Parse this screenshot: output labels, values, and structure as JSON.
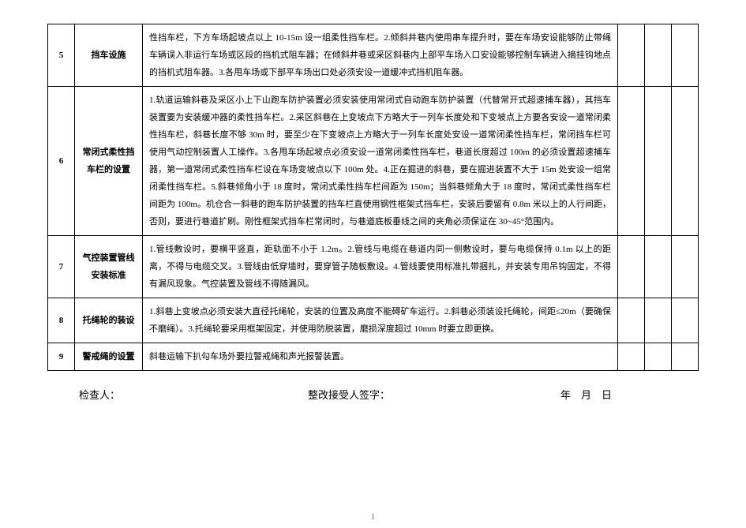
{
  "table": {
    "rows": [
      {
        "num": "5",
        "title": "挡车设施",
        "desc": "性挡车栏，下方车场起坡点以上 10-15m 设一组柔性挡车栏。2.倾斜井巷内使用串车提升时，要在车场安设能够防止带绳车辆误入非运行车场或区段的挡机式阻车器；在倾斜井巷或采区斜巷内上部平车场入口安设能够控制车辆进入摘挂钩地点的挡机式阻车器。3.各甩车场或下部平车场出口处必须安设一道缓冲式挡机阻车器。"
      },
      {
        "num": "6",
        "title": "常闭式柔性挡车栏的设置",
        "desc": "1.轨道运输斜巷及采区小上下山跑车防护装置必须安装使用常闭式自动跑车防护装置（代替常开式超速捕车器），其挡车装置要为安装缓冲器的柔性挡车栏。2.采区斜巷在上变坡点下方略大于一列车长度处和下变坡点上方要各安设一道常闭柔性挡车栏，斜巷长度不够 30m 时，要至少在下变坡点上方略大于一列车长度处安设一道常闭柔性挡车栏，常闭挡车栏可使用气动控制装置人工操作。3.各甩车场起坡点必须安设一道常闭柔性挡车栏，巷道长度超过 100m 的必须设置超速捕车器，第一道常闭式柔性挡车栏设在车场变坡点以下 100m 处。4.正在掘进的斜巷，要在掘进装置不大于 15m 处安设一组常闭柔性挡车栏。5.斜巷倾角小于 18 度时，常闭式柔性挡车栏间距为 150m；当斜巷倾角大于 18 度时，常闭式柔性挡车栏间距为 100m。机仓合一斜巷的跑车防护装置的挡车栏直使用钢性框架式挡车栏，安装后要留有 0.8m 米以上的人行间距，否则，要进行巷道扩刷。刚性框架式挡车栏常闭时，与巷道底板垂线之间的夹角必须保证在 30~45°范围内。"
      },
      {
        "num": "7",
        "title": "气控装置管线安装标准",
        "desc": "1.管线敷设时，要横平竖直，距轨面不小于 1.2m。2.管线与电缆在巷道内同一侧敷设时，要与电缆保持 0.1m 以上的距离，不得与电缆交叉。3.管线由低穿墙时，要穿管子随板敷设。4.管线要使用标准扎带捆扎，并安装专用吊钩固定，不得有漏风现象。气控装置及管线不得随漏风。"
      },
      {
        "num": "8",
        "title": "托绳轮的装设",
        "desc": "1.斜巷上变坡点必须安装大直径托绳轮，安装的位置及高度不能碍矿车运行。2.斜巷必须装设托绳轮，间距≤20m（要确保不磨绳）。3.托绳轮要采用框架固定，并使用防脱装置，磨损深度超过 10mm 时要立即更换。"
      },
      {
        "num": "9",
        "title": "警戒绳的设置",
        "desc": "斜巷运输下扒勾车场外要拉警戒绳和声光报警装置。"
      }
    ]
  },
  "footer": {
    "inspector": "检查人：",
    "receiver": "整改接受人签字：",
    "date": "年　月　日"
  },
  "page": "1"
}
